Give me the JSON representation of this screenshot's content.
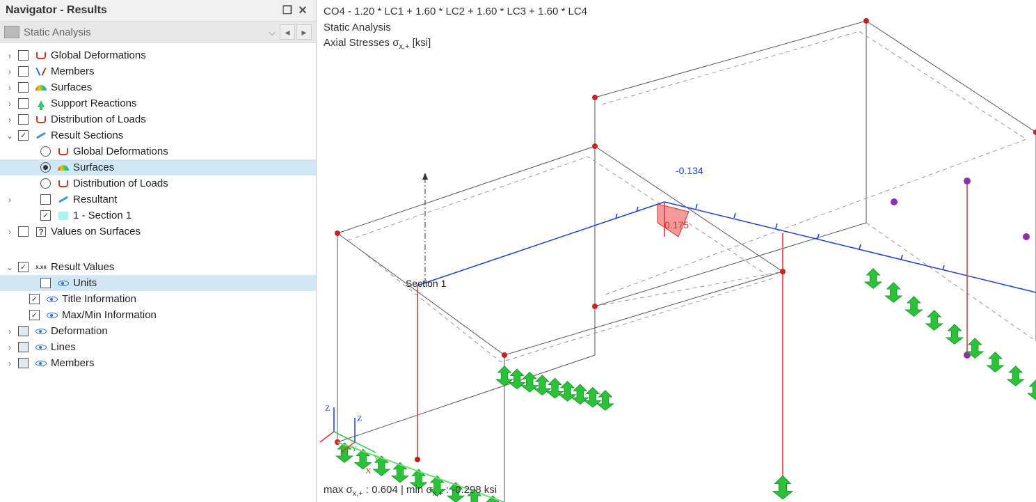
{
  "sidebar": {
    "title": "Navigator - Results",
    "dropdown_label": "Static Analysis",
    "items": [
      {
        "label": "Global Deformations",
        "exp": ">",
        "check": "empty",
        "icon": "bracket",
        "indent": 0
      },
      {
        "label": "Members",
        "exp": ">",
        "check": "empty",
        "icon": "vee",
        "indent": 0
      },
      {
        "label": "Surfaces",
        "exp": ">",
        "check": "empty",
        "icon": "rainbow",
        "indent": 0
      },
      {
        "label": "Support Reactions",
        "exp": ">",
        "check": "empty",
        "icon": "arrowup",
        "indent": 0
      },
      {
        "label": "Distribution of Loads",
        "exp": ">",
        "check": "empty",
        "icon": "bracket",
        "indent": 0
      },
      {
        "label": "Result Sections",
        "exp": "v",
        "check": "checked",
        "icon": "pencil",
        "indent": 0
      },
      {
        "label": "Global Deformations",
        "exp": "",
        "radio": "off",
        "icon": "bracket",
        "indent": 2
      },
      {
        "label": "Surfaces",
        "exp": "",
        "radio": "on",
        "icon": "rainbow",
        "indent": 2,
        "selected": true
      },
      {
        "label": "Distribution of Loads",
        "exp": "",
        "radio": "off",
        "icon": "bracket",
        "indent": 2
      },
      {
        "label": "Resultant",
        "exp": ">",
        "check": "empty",
        "icon": "pencil",
        "indent": 2
      },
      {
        "label": "1 - Section 1",
        "exp": "",
        "check": "checked",
        "icon": "cyan",
        "indent": 2
      },
      {
        "label": "Values on Surfaces",
        "exp": ">",
        "check": "empty",
        "icon": "q",
        "indent": 0
      }
    ],
    "items2": [
      {
        "label": "Result Values",
        "exp": "v",
        "check": "checked",
        "icon": "xxx",
        "indent": 0
      },
      {
        "label": "Units",
        "exp": "",
        "check": "empty",
        "icon": "eye",
        "indent": 2,
        "selected": true
      },
      {
        "label": "Title Information",
        "exp": "",
        "check": "checked",
        "icon": "eye",
        "indent": 1
      },
      {
        "label": "Max/Min Information",
        "exp": "",
        "check": "checked",
        "icon": "eye",
        "indent": 1
      },
      {
        "label": "Deformation",
        "exp": ">",
        "check": "partial",
        "icon": "eye",
        "indent": 0
      },
      {
        "label": "Lines",
        "exp": ">",
        "check": "partial",
        "icon": "eye",
        "indent": 0
      },
      {
        "label": "Members",
        "exp": ">",
        "check": "partial",
        "icon": "eye",
        "indent": 0
      }
    ]
  },
  "viewport": {
    "line1": "CO4 - 1.20 * LC1 + 1.60 * LC2 + 1.60 * LC3 + 1.60 * LC4",
    "line2": "Static Analysis",
    "line3_a": "Axial Stresses σ",
    "line3_sub": "x,+",
    "line3_b": "  [ksi]",
    "footer_a": "max σ",
    "footer_sub1": "x,+",
    "footer_b": " : 0.604 | min σ",
    "footer_sub2": "x,+",
    "footer_c": " : -0.298 ksi",
    "section_label": "Section 1",
    "val_neg": "-0.134",
    "val_pos": "0.175",
    "axis_z": "Z",
    "axis_z2": "Z",
    "axis_y": "Y",
    "axis_x": "X",
    "colors": {
      "edge": "#555555",
      "dash": "#999999",
      "section_blue": "#1b3fd1",
      "section_red": "#e03030",
      "node_red": "#d02020",
      "node_purple": "#8e2fb0",
      "support_green": "#2bc23a",
      "support_green_lt": "#6be06f"
    }
  }
}
